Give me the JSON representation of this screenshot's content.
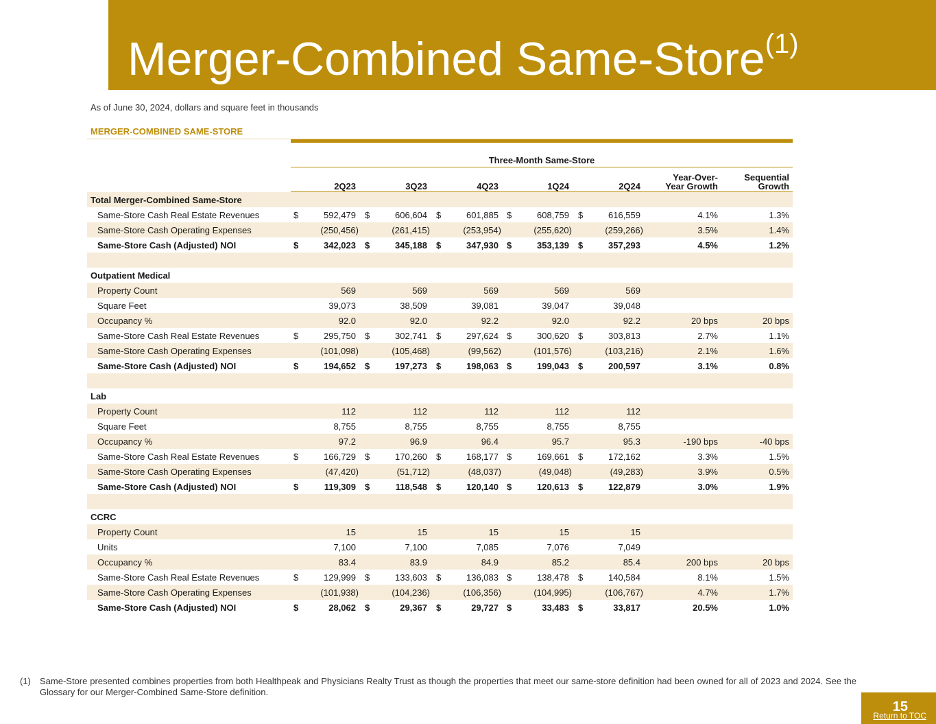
{
  "title": "Merger-Combined Same-Store",
  "title_sup": "(1)",
  "subtitle": "As of June 30, 2024, dollars and square feet in thousands",
  "section_label": "MERGER-COMBINED SAME-STORE",
  "group_header": "Three-Month Same-Store",
  "columns": [
    "2Q23",
    "3Q23",
    "4Q23",
    "1Q24",
    "2Q24",
    "Year-Over-\nYear Growth",
    "Sequential\nGrowth"
  ],
  "rows": [
    {
      "type": "section",
      "label": "Total Merger-Combined Same-Store",
      "values": [
        "",
        "",
        "",
        "",
        "",
        "",
        ""
      ]
    },
    {
      "type": "data",
      "label": "Same-Store Cash Real Estate Revenues",
      "dollar": true,
      "values": [
        "592,479",
        "606,604",
        "601,885",
        "608,759",
        "616,559",
        "4.1%",
        "1.3%"
      ]
    },
    {
      "type": "data",
      "label": "Same-Store Cash Operating Expenses",
      "values": [
        "(250,456)",
        "(261,415)",
        "(253,954)",
        "(255,620)",
        "(259,266)",
        "3.5%",
        "1.4%"
      ]
    },
    {
      "type": "total",
      "label": "Same-Store Cash (Adjusted) NOI",
      "dollar": true,
      "values": [
        "342,023",
        "345,188",
        "347,930",
        "353,139",
        "357,293",
        "4.5%",
        "1.2%"
      ]
    },
    {
      "type": "blank",
      "label": "",
      "values": [
        "",
        "",
        "",
        "",
        "",
        "",
        ""
      ]
    },
    {
      "type": "section",
      "label": "Outpatient Medical",
      "values": [
        "",
        "",
        "",
        "",
        "",
        "",
        ""
      ]
    },
    {
      "type": "data",
      "label": "Property Count",
      "values": [
        "569",
        "569",
        "569",
        "569",
        "569",
        "",
        ""
      ]
    },
    {
      "type": "data",
      "label": "Square Feet",
      "values": [
        "39,073",
        "38,509",
        "39,081",
        "39,047",
        "39,048",
        "",
        ""
      ]
    },
    {
      "type": "data",
      "label": "Occupancy %",
      "values": [
        "92.0",
        "92.0",
        "92.2",
        "92.0",
        "92.2",
        "20 bps",
        "20 bps"
      ]
    },
    {
      "type": "data",
      "label": "Same-Store Cash Real Estate Revenues",
      "dollar": true,
      "values": [
        "295,750",
        "302,741",
        "297,624",
        "300,620",
        "303,813",
        "2.7%",
        "1.1%"
      ]
    },
    {
      "type": "data",
      "label": "Same-Store Cash Operating Expenses",
      "values": [
        "(101,098)",
        "(105,468)",
        "(99,562)",
        "(101,576)",
        "(103,216)",
        "2.1%",
        "1.6%"
      ]
    },
    {
      "type": "total",
      "label": "Same-Store Cash (Adjusted) NOI",
      "dollar": true,
      "values": [
        "194,652",
        "197,273",
        "198,063",
        "199,043",
        "200,597",
        "3.1%",
        "0.8%"
      ]
    },
    {
      "type": "blank",
      "label": "",
      "values": [
        "",
        "",
        "",
        "",
        "",
        "",
        ""
      ]
    },
    {
      "type": "section",
      "label": "Lab",
      "values": [
        "",
        "",
        "",
        "",
        "",
        "",
        ""
      ]
    },
    {
      "type": "data",
      "label": "Property Count",
      "values": [
        "112",
        "112",
        "112",
        "112",
        "112",
        "",
        ""
      ]
    },
    {
      "type": "data",
      "label": "Square Feet",
      "values": [
        "8,755",
        "8,755",
        "8,755",
        "8,755",
        "8,755",
        "",
        ""
      ]
    },
    {
      "type": "data",
      "label": "Occupancy %",
      "values": [
        "97.2",
        "96.9",
        "96.4",
        "95.7",
        "95.3",
        "-190 bps",
        "-40 bps"
      ]
    },
    {
      "type": "data",
      "label": "Same-Store Cash Real Estate Revenues",
      "dollar": true,
      "values": [
        "166,729",
        "170,260",
        "168,177",
        "169,661",
        "172,162",
        "3.3%",
        "1.5%"
      ]
    },
    {
      "type": "data",
      "label": "Same-Store Cash Operating Expenses",
      "values": [
        "(47,420)",
        "(51,712)",
        "(48,037)",
        "(49,048)",
        "(49,283)",
        "3.9%",
        "0.5%"
      ]
    },
    {
      "type": "total",
      "label": "Same-Store Cash (Adjusted) NOI",
      "dollar": true,
      "values": [
        "119,309",
        "118,548",
        "120,140",
        "120,613",
        "122,879",
        "3.0%",
        "1.9%"
      ]
    },
    {
      "type": "blank",
      "label": "",
      "values": [
        "",
        "",
        "",
        "",
        "",
        "",
        ""
      ]
    },
    {
      "type": "section",
      "label": "CCRC",
      "values": [
        "",
        "",
        "",
        "",
        "",
        "",
        ""
      ]
    },
    {
      "type": "data",
      "label": "Property Count",
      "values": [
        "15",
        "15",
        "15",
        "15",
        "15",
        "",
        ""
      ]
    },
    {
      "type": "data",
      "label": "Units",
      "values": [
        "7,100",
        "7,100",
        "7,085",
        "7,076",
        "7,049",
        "",
        ""
      ]
    },
    {
      "type": "data",
      "label": "Occupancy %",
      "values": [
        "83.4",
        "83.9",
        "84.9",
        "85.2",
        "85.4",
        "200 bps",
        "20 bps"
      ]
    },
    {
      "type": "data",
      "label": "Same-Store Cash Real Estate Revenues",
      "dollar": true,
      "values": [
        "129,999",
        "133,603",
        "136,083",
        "138,478",
        "140,584",
        "8.1%",
        "1.5%"
      ]
    },
    {
      "type": "data",
      "label": "Same-Store Cash Operating Expenses",
      "values": [
        "(101,938)",
        "(104,236)",
        "(106,356)",
        "(104,995)",
        "(106,767)",
        "4.7%",
        "1.7%"
      ]
    },
    {
      "type": "total",
      "label": "Same-Store Cash (Adjusted) NOI",
      "dollar": true,
      "values": [
        "28,062",
        "29,367",
        "29,727",
        "33,483",
        "33,817",
        "20.5%",
        "1.0%"
      ]
    }
  ],
  "dollar_sign": "$",
  "footnote": {
    "mark": "(1)",
    "text": "Same-Store presented combines properties from both Healthpeak and Physicians Realty Trust as though the properties that meet our same-store definition had been owned for all of 2023 and 2024. See the Glossary for our Merger-Combined Same-Store definition."
  },
  "page_number": "15",
  "return_link": "Return to TOC",
  "colors": {
    "gold": "#bd8e0b",
    "shade": "#f6ecd9"
  }
}
